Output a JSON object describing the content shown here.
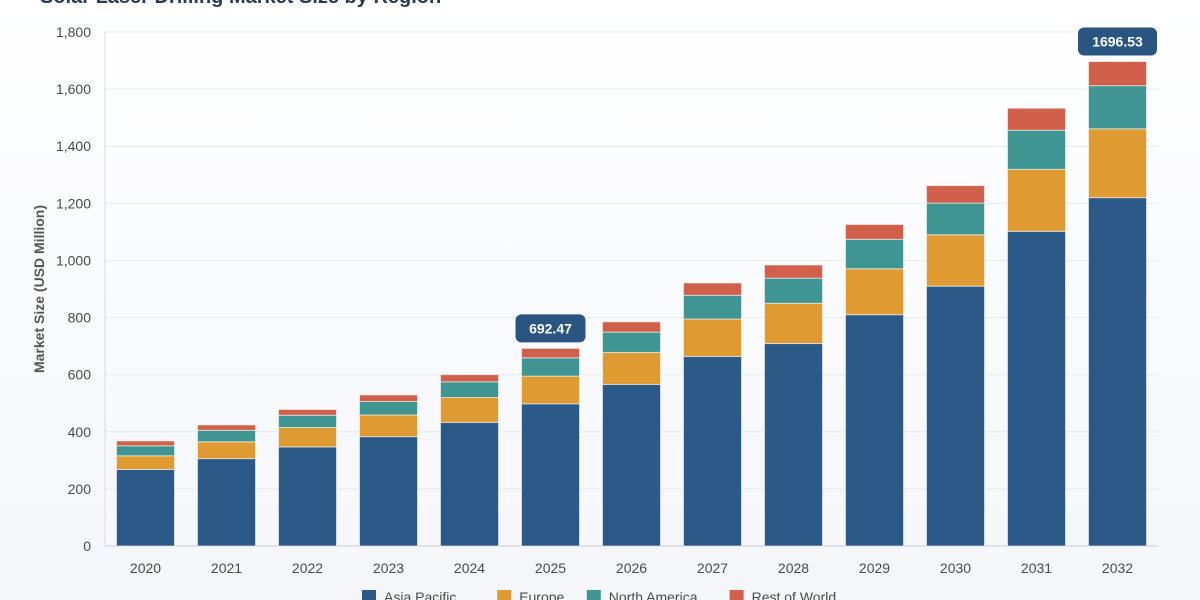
{
  "chart_data": {
    "type": "bar",
    "stacked": true,
    "title": "Solar Laser Drilling Market Size by Region",
    "xlabel": "",
    "ylabel": "Market Size (USD Million)",
    "ylim": [
      0,
      1800
    ],
    "yticks": [
      0,
      200,
      400,
      600,
      800,
      1000,
      1200,
      1400,
      1600,
      1800
    ],
    "ytick_labels": [
      "0",
      "200",
      "400",
      "600",
      "800",
      "1,000",
      "1,200",
      "1,400",
      "1,600",
      "1,800"
    ],
    "grid": true,
    "legend_position": "bottom",
    "categories": [
      "2020",
      "2021",
      "2022",
      "2023",
      "2024",
      "2025",
      "2026",
      "2027",
      "2028",
      "2029",
      "2030",
      "2031",
      "2032"
    ],
    "series": [
      {
        "name": "Asia Pacific",
        "color": "#2c5a88",
        "values": [
          268,
          306,
          347,
          383,
          433,
          498,
          566,
          664,
          709,
          810,
          910,
          1102,
          1220
        ]
      },
      {
        "name": "Europe",
        "color": "#e09a32",
        "values": [
          48,
          59,
          68,
          76,
          87,
          97,
          112,
          131,
          141,
          161,
          180,
          217,
          241
        ]
      },
      {
        "name": "North America",
        "color": "#3e9591",
        "values": [
          35,
          40,
          43,
          47,
          55,
          64,
          71,
          83,
          88,
          103,
          111,
          137,
          151
        ]
      },
      {
        "name": "Rest of World",
        "color": "#d0604a",
        "values": [
          17,
          19,
          20,
          23,
          25,
          33,
          36,
          43,
          46,
          52,
          61,
          77,
          84.53
        ]
      }
    ],
    "annotations": [
      {
        "category": "2025",
        "text": "692.47"
      },
      {
        "category": "2032",
        "text": "1696.53"
      }
    ],
    "callout_color": "#2a5582"
  }
}
